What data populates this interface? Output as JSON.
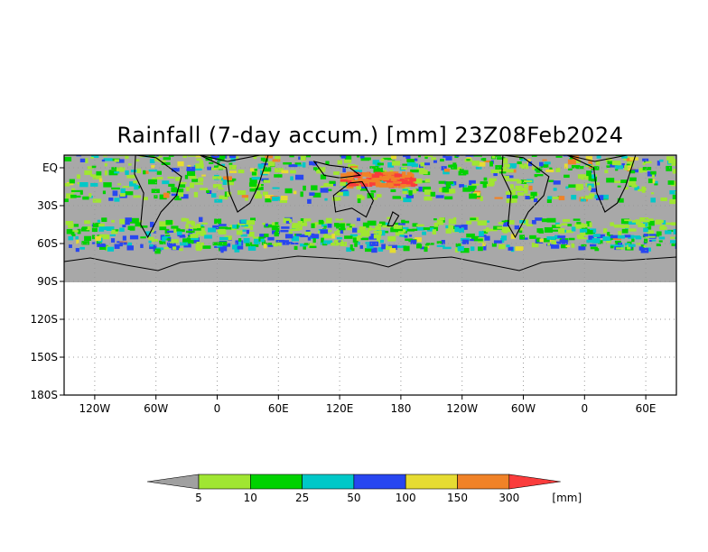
{
  "title": "Rainfall (7-day accum.) [mm] 23Z08Feb2024",
  "map": {
    "lat_labels": [
      "EQ",
      "30S",
      "60S",
      "90S",
      "120S",
      "150S",
      "180S"
    ],
    "lon_labels": [
      "120W",
      "60W",
      "0",
      "60E",
      "120E",
      "180",
      "120W",
      "60W",
      "0",
      "60E"
    ],
    "lon_range": [
      -150,
      450
    ],
    "lat_range": [
      -180,
      10
    ],
    "data_lat_min": -90,
    "grid": "dotted",
    "ocean_no_rain_color": "#a8a8a8"
  },
  "colorbar": {
    "levels": [
      "5",
      "10",
      "25",
      "50",
      "100",
      "150",
      "300"
    ],
    "unit": "[mm]",
    "colors": [
      "#a0a0a0",
      "#a0e632",
      "#00d200",
      "#00c8c8",
      "#2846f0",
      "#e6dc32",
      "#f08228",
      "#fa3c3c"
    ]
  }
}
